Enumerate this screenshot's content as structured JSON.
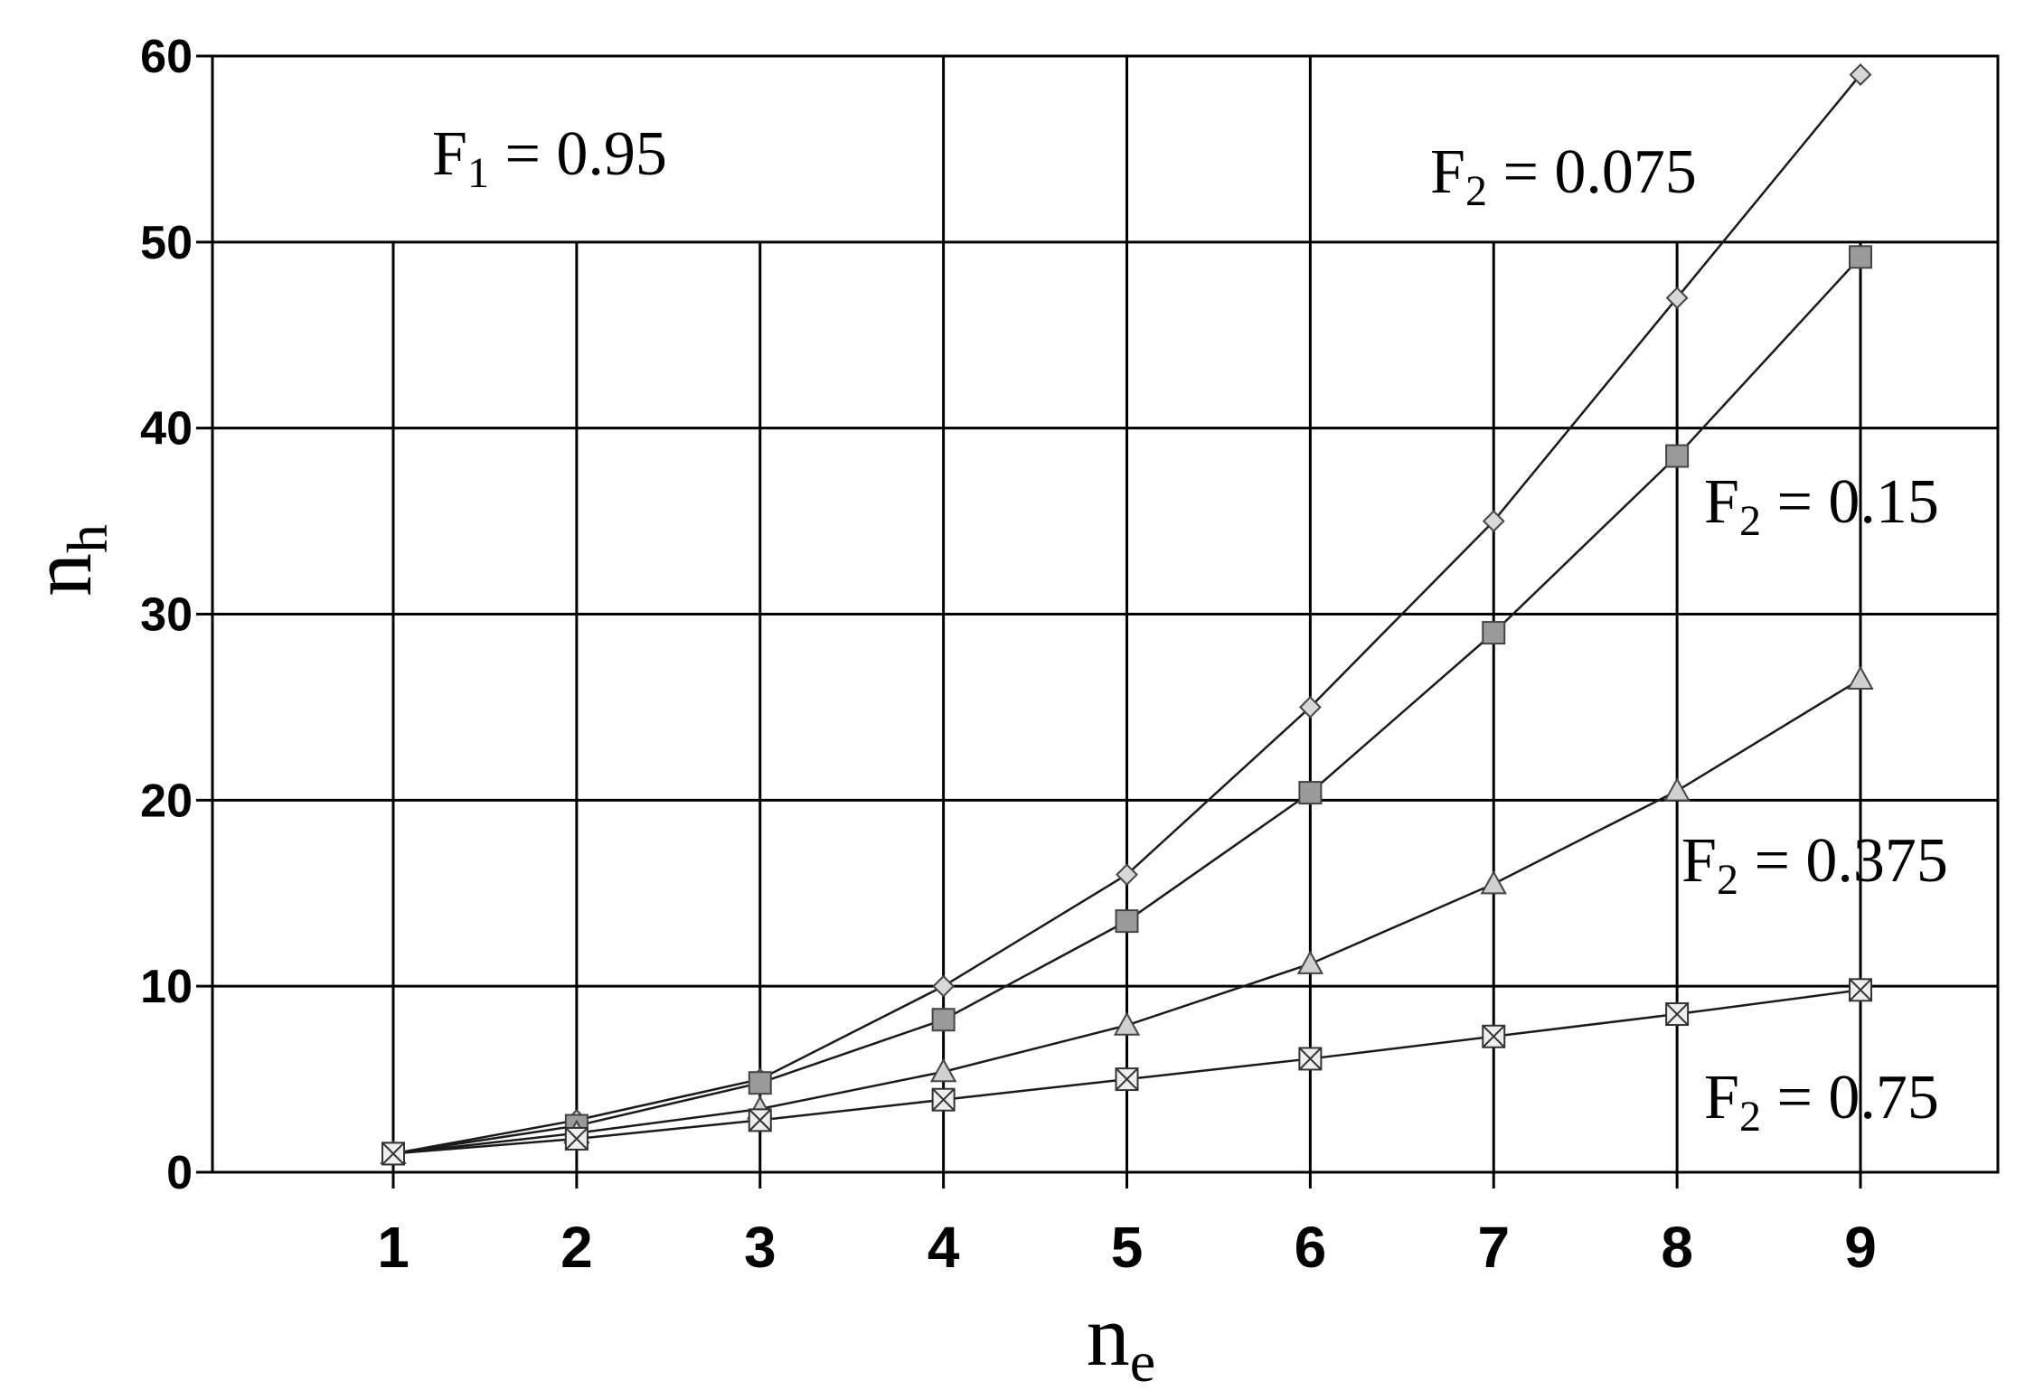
{
  "chart_data": {
    "type": "line",
    "xlabel": "n",
    "xlabel_sub": "e",
    "ylabel": "n",
    "ylabel_sub": "h",
    "xlim": [
      1,
      9
    ],
    "ylim": [
      0,
      60
    ],
    "x_ticks": [
      "1",
      "2",
      "3",
      "4",
      "5",
      "6",
      "7",
      "8",
      "9"
    ],
    "y_ticks": [
      "0",
      "10",
      "20",
      "30",
      "40",
      "50",
      "60"
    ],
    "grid": true,
    "annotations": [
      {
        "id": "f1",
        "var": "F",
        "sub": "1",
        "text": " = 0.95"
      },
      {
        "id": "f2a",
        "var": "F",
        "sub": "2",
        "text": " = 0.075"
      },
      {
        "id": "f2b",
        "var": "F",
        "sub": "2",
        "text": " = 0.15"
      },
      {
        "id": "f2c",
        "var": "F",
        "sub": "2",
        "text": " = 0.375"
      },
      {
        "id": "f2d",
        "var": "F",
        "sub": "2",
        "text": " = 0.75"
      }
    ],
    "series": [
      {
        "key": "f2_0075",
        "marker": "diamond",
        "x": [
          1,
          2,
          3,
          4,
          5,
          6,
          7,
          8,
          9
        ],
        "y": [
          1,
          2.8,
          5,
          10,
          16,
          25,
          35,
          47,
          59
        ]
      },
      {
        "key": "f2_015",
        "marker": "square",
        "x": [
          1,
          2,
          3,
          4,
          5,
          6,
          7,
          8,
          9
        ],
        "y": [
          1,
          2.5,
          4.8,
          8.2,
          13.5,
          20.4,
          29,
          38.5,
          49.2
        ]
      },
      {
        "key": "f2_0375",
        "marker": "triangle",
        "x": [
          1,
          2,
          3,
          4,
          5,
          6,
          7,
          8,
          9
        ],
        "y": [
          1,
          2.1,
          3.4,
          5.4,
          7.9,
          11.2,
          15.5,
          20.5,
          26.5
        ]
      },
      {
        "key": "f2_075",
        "marker": "xsquare",
        "x": [
          1,
          2,
          3,
          4,
          5,
          6,
          7,
          8,
          9
        ],
        "y": [
          1,
          1.8,
          2.8,
          3.9,
          5,
          6.1,
          7.3,
          8.5,
          9.8
        ]
      }
    ]
  }
}
